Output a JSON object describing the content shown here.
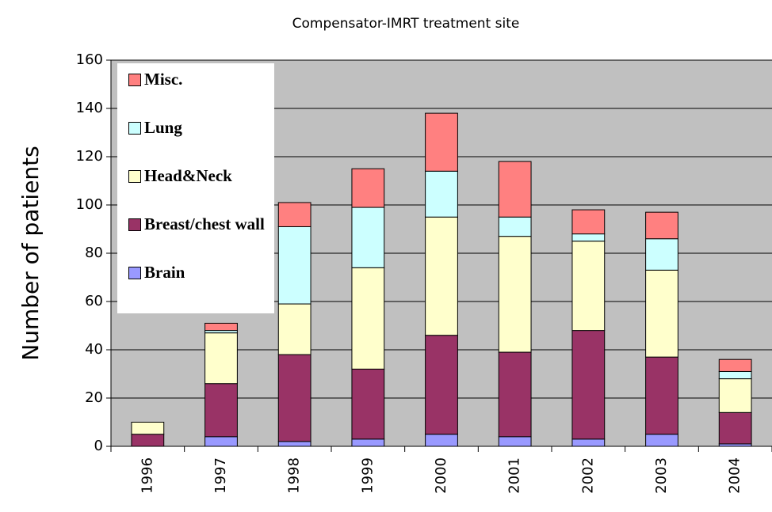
{
  "chart_data": {
    "type": "stacked-bar",
    "title": "Compensator-IMRT treatment site",
    "y_label": "Number of patients",
    "categories": [
      "1996",
      "1997",
      "1998",
      "1999",
      "2000",
      "2001",
      "2002",
      "2003",
      "2004"
    ],
    "series": [
      {
        "name": "Brain",
        "color": "#9999ff",
        "values": [
          0,
          4,
          2,
          3,
          5,
          4,
          3,
          5,
          1
        ]
      },
      {
        "name": "Breast/chest wall",
        "color": "#993366",
        "values": [
          5,
          22,
          36,
          29,
          41,
          35,
          45,
          32,
          13
        ]
      },
      {
        "name": "Head&Neck",
        "color": "#ffffcc",
        "values": [
          5,
          21,
          21,
          42,
          49,
          48,
          37,
          36,
          14
        ]
      },
      {
        "name": "Lung",
        "color": "#ccffff",
        "values": [
          0,
          1,
          32,
          25,
          19,
          8,
          3,
          13,
          3
        ]
      },
      {
        "name": "Misc.",
        "color": "#ff8080",
        "values": [
          0,
          3,
          10,
          16,
          24,
          23,
          10,
          11,
          5
        ]
      }
    ],
    "ylim": [
      0,
      160
    ],
    "yticks": [
      0,
      20,
      40,
      60,
      80,
      100,
      120,
      140,
      160
    ],
    "grid": true,
    "legend": "top-left"
  }
}
